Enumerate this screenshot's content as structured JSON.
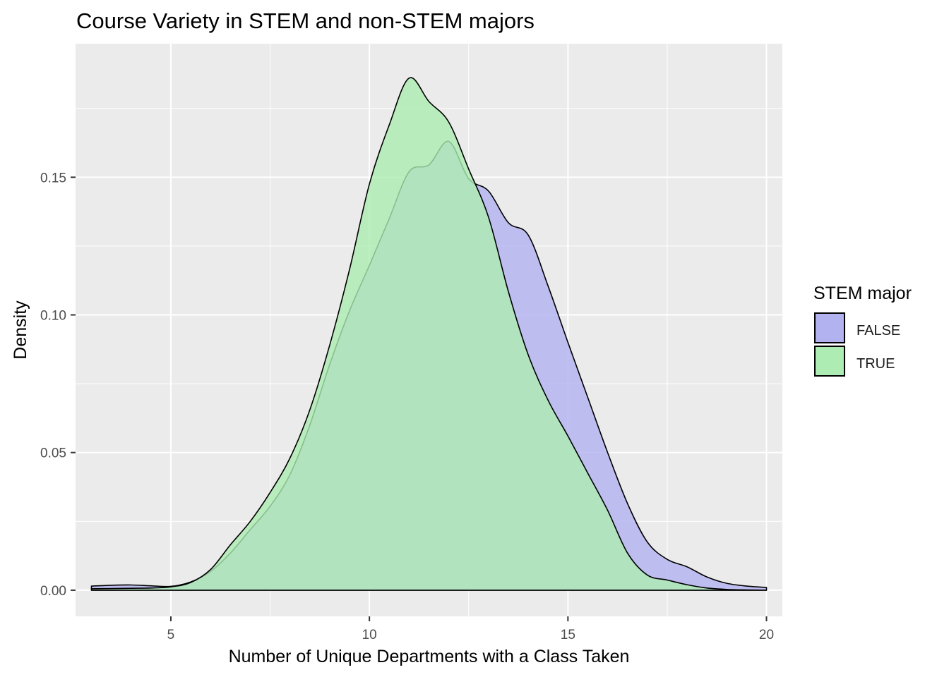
{
  "chart_data": {
    "type": "area",
    "title": "Course Variety in STEM and non-STEM majors",
    "xlabel": "Number of Unique Departments with a Class Taken",
    "ylabel": "Density",
    "xlim": [
      2.6,
      20.4
    ],
    "ylim": [
      -0.0095,
      0.1985
    ],
    "x_ticks": [
      5,
      10,
      15,
      20
    ],
    "y_ticks": [
      0.0,
      0.05,
      0.1,
      0.15
    ],
    "x_tick_labels": [
      "5",
      "10",
      "15",
      "20"
    ],
    "y_tick_labels": [
      "0.00",
      "0.05",
      "0.10",
      "0.15"
    ],
    "grid": true,
    "legend": {
      "title": "STEM major",
      "position": "right"
    },
    "series": [
      {
        "name": "FALSE",
        "color": "#b2b2f0",
        "points": [
          [
            3.0,
            0.0015
          ],
          [
            3.5,
            0.0018
          ],
          [
            4.0,
            0.0019
          ],
          [
            4.5,
            0.0016
          ],
          [
            5.0,
            0.0014
          ],
          [
            5.5,
            0.003
          ],
          [
            6.0,
            0.0068
          ],
          [
            6.5,
            0.0135
          ],
          [
            7.0,
            0.022
          ],
          [
            7.5,
            0.0305
          ],
          [
            8.0,
            0.042
          ],
          [
            8.5,
            0.06
          ],
          [
            9.0,
            0.082
          ],
          [
            9.5,
            0.1015
          ],
          [
            10.0,
            0.118
          ],
          [
            10.5,
            0.135
          ],
          [
            11.0,
            0.152
          ],
          [
            11.5,
            0.1545
          ],
          [
            12.0,
            0.163
          ],
          [
            12.5,
            0.1495
          ],
          [
            13.0,
            0.145
          ],
          [
            13.5,
            0.1335
          ],
          [
            14.0,
            0.129
          ],
          [
            14.5,
            0.1105
          ],
          [
            15.0,
            0.09
          ],
          [
            15.5,
            0.07
          ],
          [
            16.0,
            0.05
          ],
          [
            16.5,
            0.0315
          ],
          [
            17.0,
            0.0175
          ],
          [
            17.5,
            0.0112
          ],
          [
            18.0,
            0.0085
          ],
          [
            18.5,
            0.0048
          ],
          [
            19.0,
            0.0025
          ],
          [
            19.5,
            0.0015
          ],
          [
            20.0,
            0.001
          ]
        ]
      },
      {
        "name": "TRUE",
        "color": "#adecb2",
        "points": [
          [
            3.0,
            0.0005
          ],
          [
            3.5,
            0.0006
          ],
          [
            4.0,
            0.0007
          ],
          [
            4.5,
            0.0008
          ],
          [
            5.0,
            0.0012
          ],
          [
            5.5,
            0.0028
          ],
          [
            6.0,
            0.0075
          ],
          [
            6.5,
            0.0165
          ],
          [
            7.0,
            0.025
          ],
          [
            7.5,
            0.0355
          ],
          [
            8.0,
            0.048
          ],
          [
            8.5,
            0.0655
          ],
          [
            9.0,
            0.089
          ],
          [
            9.5,
            0.1165
          ],
          [
            10.0,
            0.1475
          ],
          [
            10.5,
            0.169
          ],
          [
            11.0,
            0.186
          ],
          [
            11.5,
            0.1775
          ],
          [
            12.0,
            0.17
          ],
          [
            12.5,
            0.153
          ],
          [
            13.0,
            0.1355
          ],
          [
            13.5,
            0.1085
          ],
          [
            14.0,
            0.0855
          ],
          [
            14.5,
            0.069
          ],
          [
            15.0,
            0.056
          ],
          [
            15.5,
            0.0425
          ],
          [
            16.0,
            0.029
          ],
          [
            16.5,
            0.0135
          ],
          [
            17.0,
            0.0055
          ],
          [
            17.5,
            0.0037
          ],
          [
            18.0,
            0.002
          ],
          [
            18.5,
            0.0008
          ],
          [
            19.0,
            0.0003
          ],
          [
            19.5,
            0.0001
          ],
          [
            20.0,
            0.0
          ]
        ]
      }
    ]
  }
}
